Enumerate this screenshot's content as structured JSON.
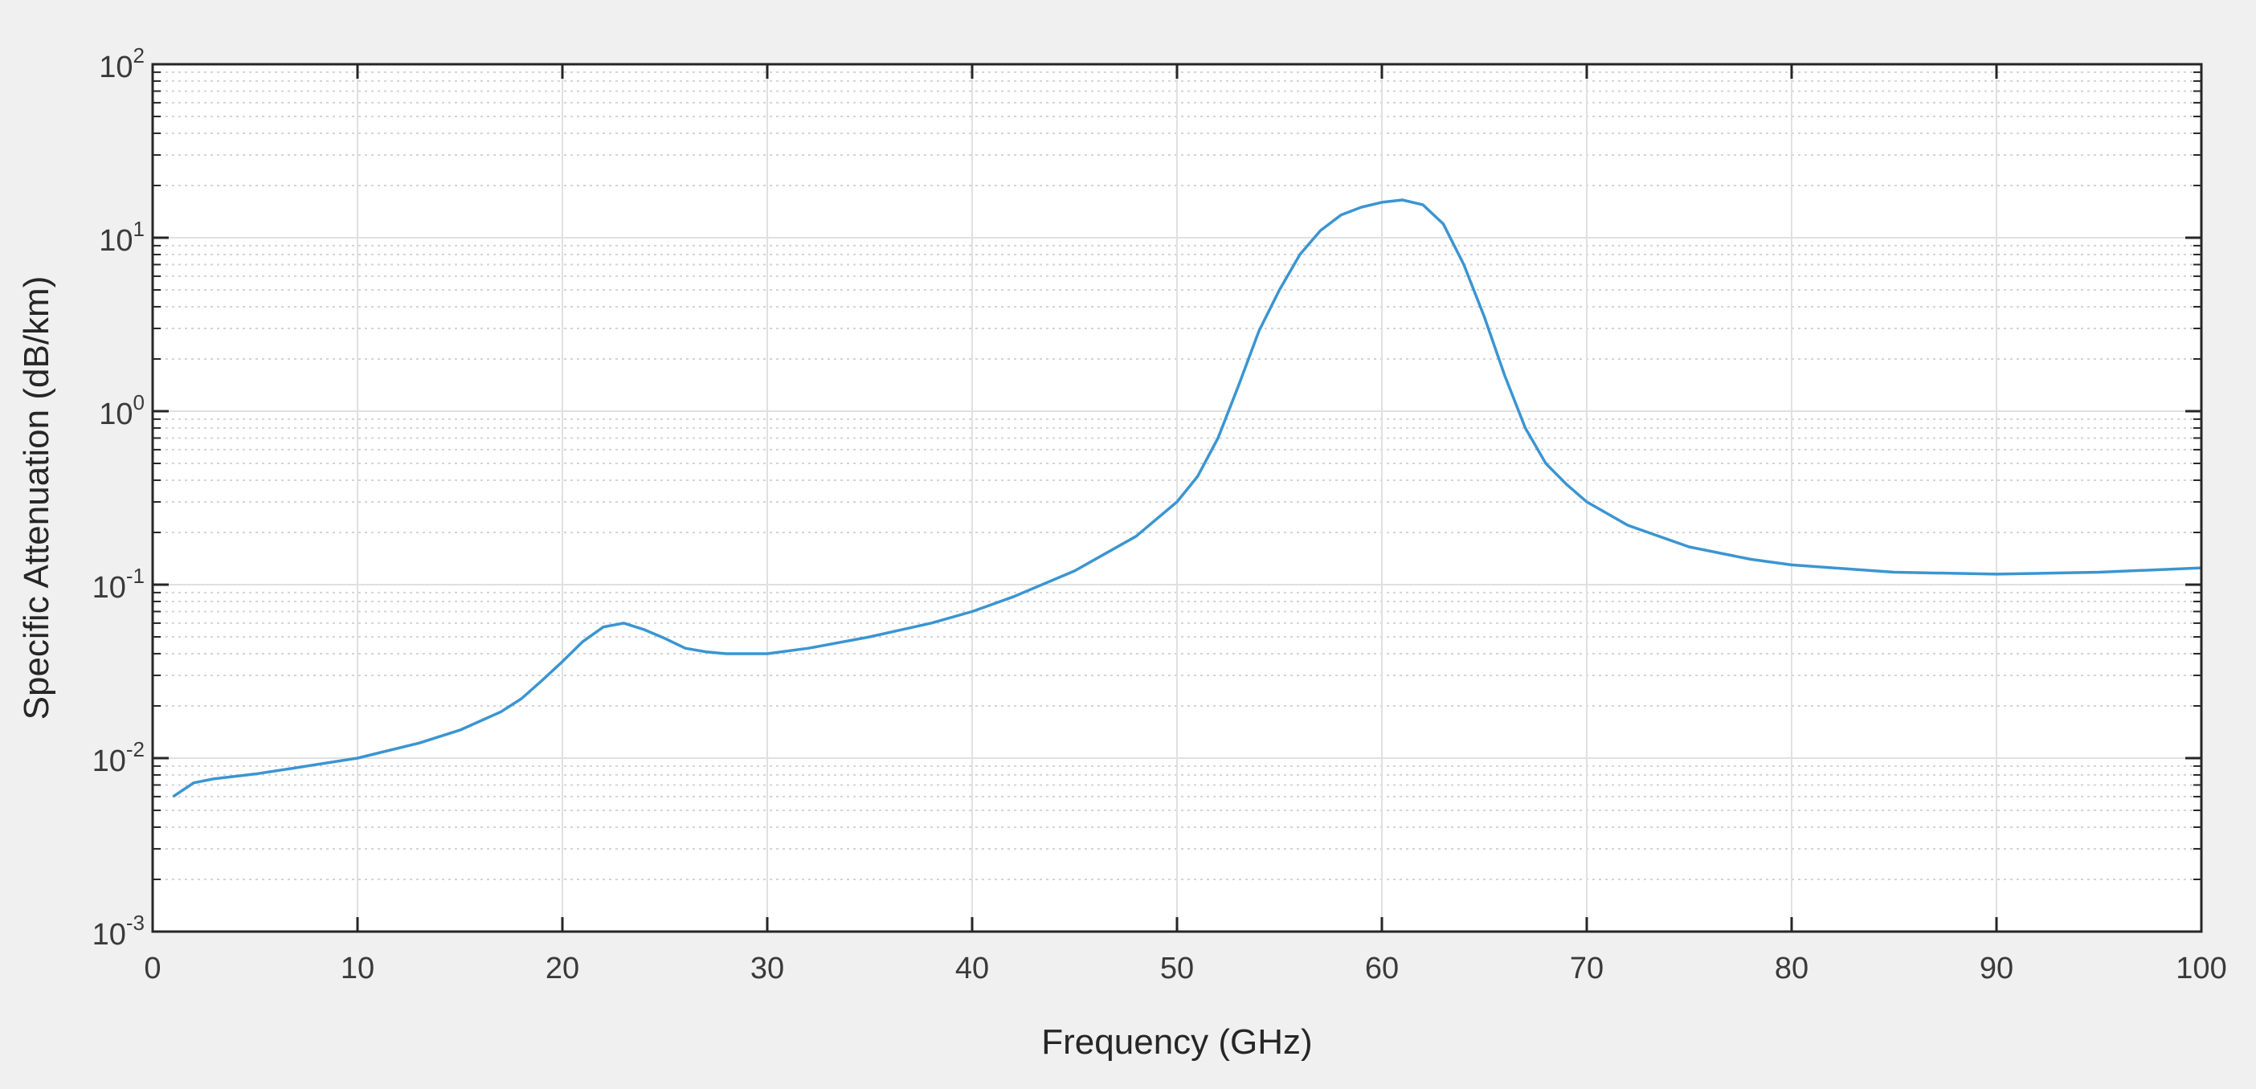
{
  "chart_data": {
    "type": "line",
    "title": "",
    "xlabel": "Frequency (GHz)",
    "ylabel": "Specific Attenuation (dB/km)",
    "xlim": [
      0,
      100
    ],
    "ylim": [
      0.001,
      100
    ],
    "yscale": "log",
    "grid": true,
    "minor_grid": true,
    "x_ticks": [
      "0",
      "10",
      "20",
      "30",
      "40",
      "50",
      "60",
      "70",
      "80",
      "90",
      "100"
    ],
    "y_ticks": [
      {
        "base": "10",
        "exp": "-3"
      },
      {
        "base": "10",
        "exp": "-2"
      },
      {
        "base": "10",
        "exp": "-1"
      },
      {
        "base": "10",
        "exp": "0"
      },
      {
        "base": "10",
        "exp": "1"
      },
      {
        "base": "10",
        "exp": "2"
      }
    ],
    "line_color": "#3a95d2",
    "series": [
      {
        "x": [
          1,
          2,
          3,
          5,
          7,
          10,
          13,
          15,
          17,
          18,
          19,
          20,
          21,
          22,
          23,
          24,
          25,
          26,
          27,
          28,
          30,
          32,
          35,
          38,
          40,
          42,
          45,
          48,
          50,
          51,
          52,
          53,
          54,
          55,
          56,
          57,
          58,
          59,
          60,
          61,
          62,
          63,
          64,
          65,
          66,
          67,
          68,
          69,
          70,
          72,
          75,
          78,
          80,
          85,
          90,
          95,
          100
        ],
        "y": [
          0.006,
          0.0072,
          0.0076,
          0.0081,
          0.0088,
          0.01,
          0.0122,
          0.0145,
          0.0185,
          0.022,
          0.028,
          0.036,
          0.047,
          0.057,
          0.06,
          0.055,
          0.049,
          0.043,
          0.041,
          0.04,
          0.04,
          0.043,
          0.05,
          0.06,
          0.07,
          0.085,
          0.12,
          0.19,
          0.3,
          0.42,
          0.7,
          1.4,
          2.9,
          5.0,
          8.0,
          11.0,
          13.5,
          15.0,
          16.0,
          16.5,
          15.5,
          12.0,
          7.0,
          3.5,
          1.6,
          0.8,
          0.5,
          0.38,
          0.3,
          0.22,
          0.165,
          0.14,
          0.13,
          0.118,
          0.115,
          0.118,
          0.125
        ]
      }
    ]
  }
}
